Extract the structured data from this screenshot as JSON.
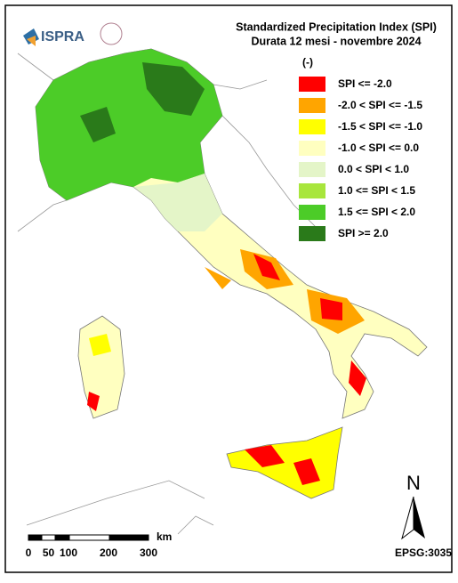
{
  "header": {
    "logo": "ISPRA",
    "title": "Standardized Precipitation  Index (SPI)",
    "subtitle": "Durata 12 mesi - novembre 2024"
  },
  "legend": {
    "unit": "(-)",
    "items": [
      {
        "label": "SPI <= -2.0",
        "color": "#ff0000"
      },
      {
        "label": "-2.0 < SPI <= -1.5",
        "color": "#ffa500"
      },
      {
        "label": "-1.5 < SPI <= -1.0",
        "color": "#ffff00"
      },
      {
        "label": "-1.0 < SPI <= 0.0",
        "color": "#ffffc0"
      },
      {
        "label": "0.0 < SPI < 1.0",
        "color": "#e4f5c8"
      },
      {
        "label": "1.0 <= SPI < 1.5",
        "color": "#a8e63c"
      },
      {
        "label": "1.5 <= SPI < 2.0",
        "color": "#4ccc28"
      },
      {
        "label": "SPI >= 2.0",
        "color": "#2a7a1a"
      }
    ]
  },
  "scale_bar": {
    "unit": "km",
    "labels": [
      0,
      50,
      100,
      200,
      300
    ]
  },
  "north": "N",
  "projection": "EPSG:3035"
}
